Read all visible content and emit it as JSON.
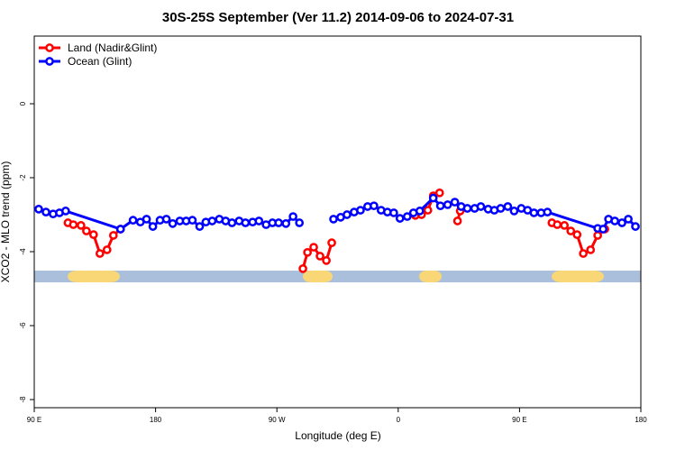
{
  "chart_data": {
    "type": "line",
    "title": "30S-25S September (Ver 11.2)   2014-09-06 to 2024-07-31",
    "xlabel": "Longitude (deg E)",
    "ylabel": "XCO2 - MLO trend (ppm)",
    "xlim": [
      90,
      540
    ],
    "ylim": [
      -8.22,
      1.83
    ],
    "xticks": [
      {
        "value": 90,
        "label": "90 E"
      },
      180,
      {
        "value": 270,
        "label": "90 W"
      },
      {
        "value": 360,
        "label": "0"
      },
      {
        "value": 450,
        "label": "90 E"
      },
      {
        "value": 540,
        "label": "180"
      }
    ],
    "yticks": [
      0,
      -2,
      -4,
      -6,
      -8
    ],
    "legend": "upper left",
    "series": [
      {
        "name": "Land (Nadir&Glint)",
        "color": "#ff0000",
        "x": [
          115,
          119,
          124.7,
          128.7,
          134,
          138.7,
          144,
          148.7,
          154,
          230,
          289.3,
          292.7,
          297.3,
          302,
          306.7,
          310.7,
          340,
          372.7,
          377.3,
          382,
          386,
          390.7,
          395,
          404,
          406,
          430,
          474,
          478,
          483.3,
          488,
          492.7,
          497.3,
          502.7,
          508,
          513.3
        ],
        "values": [
          -3.22,
          -3.27,
          -3.29,
          -3.44,
          -3.54,
          -4.05,
          -3.95,
          -3.56,
          -3.39,
          null,
          -4.46,
          -4.02,
          -3.88,
          -4.12,
          -4.24,
          -3.76,
          null,
          -3.02,
          -3.0,
          -2.88,
          -2.49,
          -2.41,
          null,
          -3.17,
          -2.9,
          null,
          -3.22,
          -3.27,
          -3.29,
          -3.44,
          -3.54,
          -4.05,
          -3.95,
          -3.56,
          -3.39
        ]
      },
      {
        "name": "Ocean (Glint)",
        "color": "#0000ff",
        "x": [
          93.3,
          98.7,
          104,
          108.7,
          113.3,
          154,
          163.3,
          168.7,
          173.3,
          178,
          183.3,
          188,
          192.7,
          198,
          202.7,
          207.3,
          212.7,
          217.3,
          222,
          227.3,
          232,
          236.7,
          242,
          246.7,
          252,
          256.7,
          262,
          266.7,
          271.3,
          276.7,
          282,
          286.7,
          300,
          312,
          317.3,
          322,
          327.3,
          332,
          337.3,
          342,
          347.3,
          352,
          356.7,
          361.3,
          366.7,
          371.3,
          376,
          386,
          391.3,
          396.7,
          402,
          406.7,
          411.3,
          416.7,
          421.3,
          426.7,
          431.3,
          436,
          441.3,
          446,
          451.3,
          456,
          460.7,
          466,
          470.7,
          508,
          512,
          516,
          520.7,
          526,
          530.7,
          536
        ],
        "values": [
          -2.85,
          -2.93,
          -2.98,
          -2.95,
          -2.9,
          -3.39,
          -3.15,
          -3.2,
          -3.12,
          -3.32,
          -3.15,
          -3.12,
          -3.24,
          -3.17,
          -3.17,
          -3.15,
          -3.32,
          -3.2,
          -3.17,
          -3.12,
          -3.17,
          -3.22,
          -3.17,
          -3.22,
          -3.2,
          -3.17,
          -3.27,
          -3.22,
          -3.22,
          -3.24,
          -3.05,
          -3.22,
          null,
          -3.12,
          -3.07,
          -3.0,
          -2.93,
          -2.88,
          -2.78,
          -2.76,
          -2.88,
          -2.93,
          -2.95,
          -3.1,
          -3.05,
          -2.95,
          -2.9,
          -2.55,
          -2.76,
          -2.73,
          -2.66,
          -2.78,
          -2.83,
          -2.83,
          -2.78,
          -2.85,
          -2.88,
          -2.83,
          -2.78,
          -2.9,
          -2.83,
          -2.88,
          -2.95,
          -2.95,
          -2.93,
          -3.37,
          -3.39,
          -3.12,
          -3.17,
          -3.22,
          -3.12,
          -3.32
        ]
      }
    ]
  }
}
